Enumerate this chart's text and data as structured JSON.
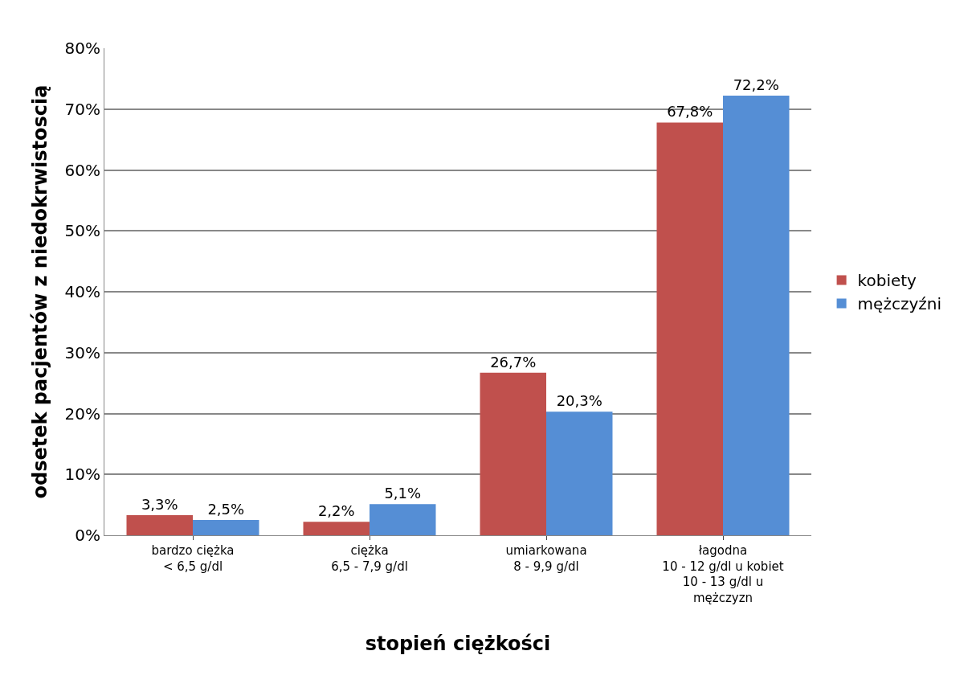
{
  "chart_data": {
    "type": "bar",
    "xlabel": "stopień ciężkości",
    "ylabel": "odsetek pacjentów z niedokrwistoscią",
    "categories": [
      "bardzo ciężka\n< 6,5 g/dl",
      "ciężka\n6,5 - 7,9 g/dl",
      "umiarkowana\n8 - 9,9 g/dl",
      "łagodna\n10 - 12 g/dl u kobiet\n10 - 13 g/dl u\nmężczyzn"
    ],
    "series": [
      {
        "name": "kobiety",
        "color": "#c0504d",
        "values": [
          3.3,
          2.2,
          26.7,
          67.8
        ],
        "value_labels": [
          "3,3%",
          "2,2%",
          "26,7%",
          "67,8%"
        ]
      },
      {
        "name": "mężczyźni",
        "color": "#558ed5",
        "values": [
          2.5,
          5.1,
          20.3,
          72.2
        ],
        "value_labels": [
          "2,5%",
          "5,1%",
          "20,3%",
          "72,2%"
        ]
      }
    ],
    "ylim": [
      0,
      80
    ],
    "yticks": [
      {
        "value": 0,
        "label": "0%"
      },
      {
        "value": 10,
        "label": "10%"
      },
      {
        "value": 20,
        "label": "20%"
      },
      {
        "value": 30,
        "label": "30%"
      },
      {
        "value": 40,
        "label": "40%"
      },
      {
        "value": 50,
        "label": "50%"
      },
      {
        "value": 60,
        "label": "60%"
      },
      {
        "value": 70,
        "label": "70%"
      },
      {
        "value": 80,
        "label": "80%"
      }
    ],
    "grid": "y",
    "legend": "right"
  }
}
